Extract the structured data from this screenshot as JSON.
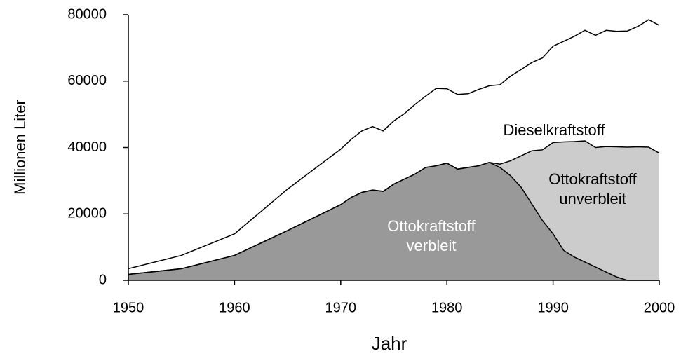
{
  "chart_data": {
    "type": "stacked_area",
    "xlabel": "Jahr",
    "ylabel": "Millionen Liter",
    "x": [
      1950,
      1955,
      1960,
      1965,
      1970,
      1971,
      1972,
      1973,
      1974,
      1975,
      1976,
      1977,
      1978,
      1979,
      1980,
      1981,
      1982,
      1983,
      1984,
      1985,
      1986,
      1987,
      1988,
      1989,
      1990,
      1991,
      1992,
      1993,
      1994,
      1995,
      1996,
      1997,
      1998,
      1999,
      2000
    ],
    "series": [
      {
        "name": "Ottokraftstoff verbleit",
        "color": "#999999",
        "label_color": "#ffffff",
        "values": [
          1800,
          3500,
          7500,
          15000,
          22800,
          25000,
          26500,
          27200,
          26800,
          29000,
          30500,
          32000,
          34000,
          34500,
          35300,
          33500,
          34000,
          34500,
          35500,
          34000,
          31500,
          28000,
          23000,
          18000,
          14000,
          9000,
          7000,
          5500,
          4000,
          2500,
          1000,
          0,
          0,
          0,
          0
        ]
      },
      {
        "name": "Ottokraftstoff unverbleit",
        "color": "#cccccc",
        "label_color": "#000000",
        "values": [
          0,
          0,
          0,
          0,
          0,
          0,
          0,
          0,
          0,
          0,
          0,
          0,
          0,
          0,
          0,
          0,
          0,
          0,
          0,
          1000,
          4500,
          9500,
          16000,
          21300,
          27500,
          32700,
          34800,
          36500,
          36000,
          37800,
          39200,
          40100,
          40200,
          40100,
          38300
        ]
      },
      {
        "name": "Dieselkraftstoff",
        "color": "#ffffff",
        "label_color": "#000000",
        "values": [
          1700,
          4000,
          6500,
          12500,
          16700,
          17500,
          18500,
          19100,
          18200,
          19000,
          19700,
          21000,
          21500,
          23300,
          22400,
          22500,
          22200,
          23000,
          23100,
          23900,
          25500,
          26000,
          26600,
          27700,
          29000,
          30300,
          31700,
          33300,
          33800,
          35000,
          34800,
          35000,
          36300,
          38400,
          38500
        ]
      }
    ],
    "xlim": [
      1950,
      2000
    ],
    "xticks": [
      1950,
      1960,
      1970,
      1980,
      1990,
      2000
    ],
    "ylim": [
      0,
      80000
    ],
    "yticks": [
      0,
      20000,
      40000,
      60000,
      80000
    ],
    "grid": false
  }
}
